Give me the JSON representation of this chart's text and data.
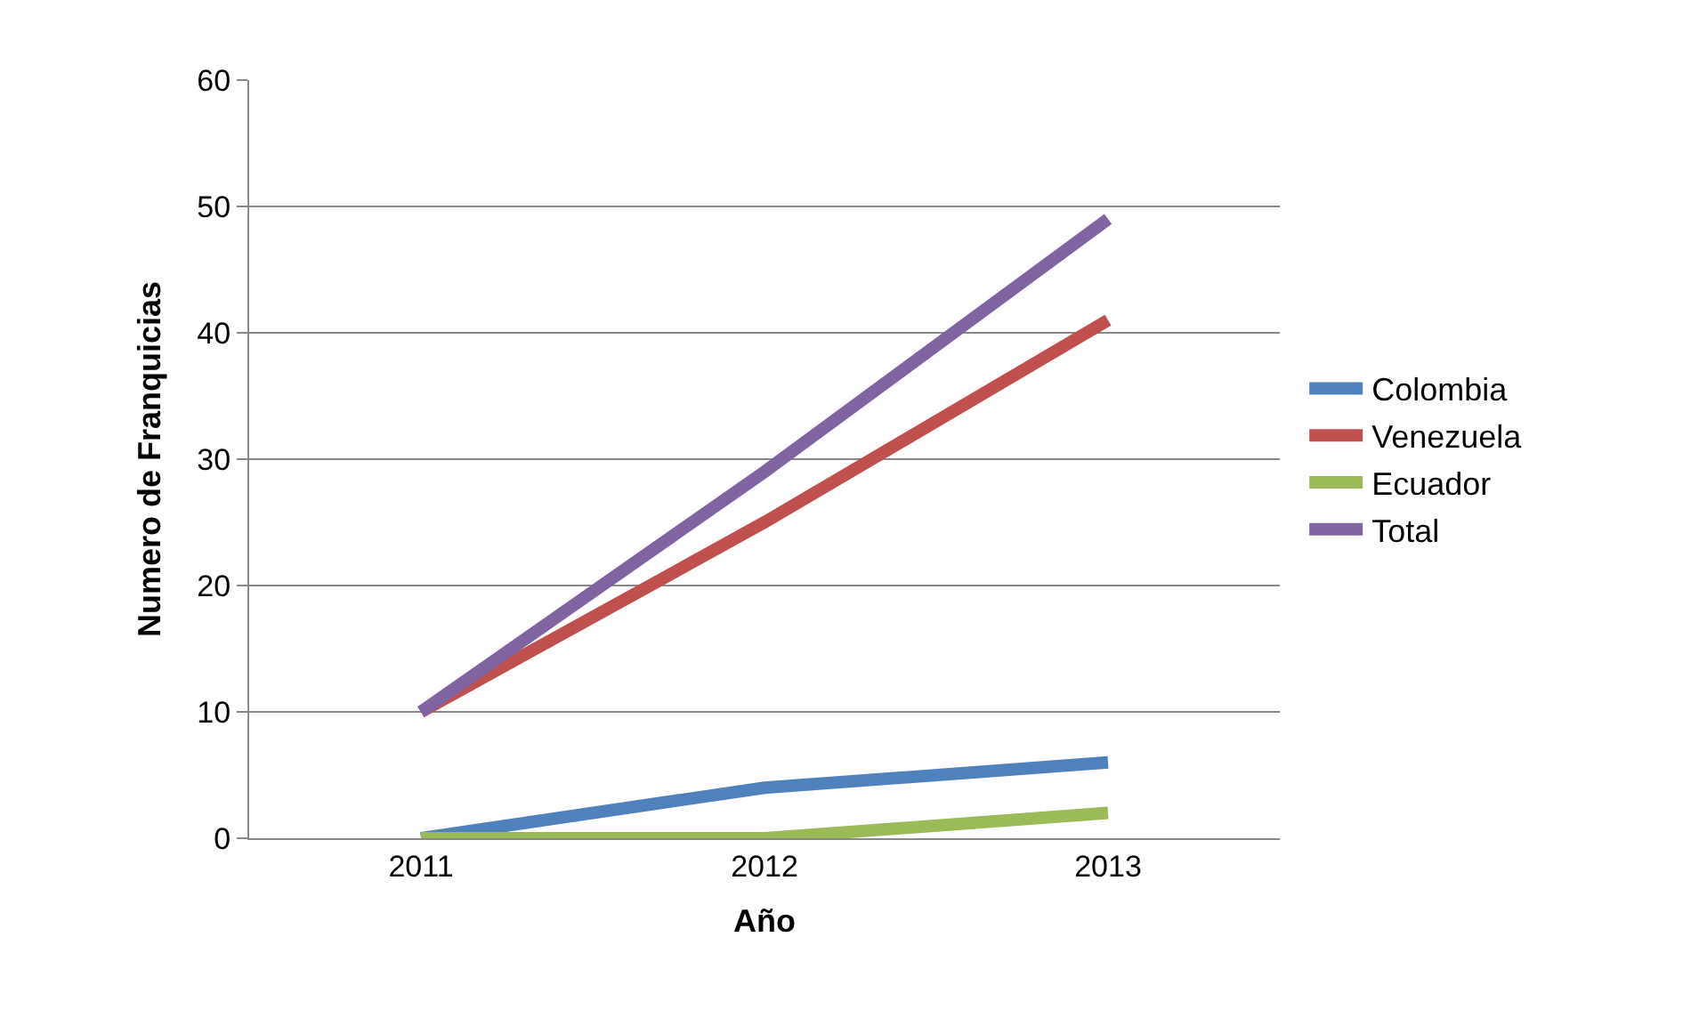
{
  "chart_data": {
    "type": "line",
    "xlabel": "Año",
    "ylabel": "Numero de Franquicias",
    "categories": [
      "2011",
      "2012",
      "2013"
    ],
    "series": [
      {
        "name": "Colombia",
        "color": "#4f81bd",
        "values": [
          0,
          4,
          6
        ]
      },
      {
        "name": "Venezuela",
        "color": "#c0504d",
        "values": [
          10,
          25,
          41
        ]
      },
      {
        "name": "Ecuador",
        "color": "#9bbb59",
        "values": [
          0,
          0,
          2
        ]
      },
      {
        "name": "Total",
        "color": "#8064a2",
        "values": [
          10,
          29,
          49
        ]
      }
    ],
    "ylim": [
      0,
      60
    ],
    "yticks": [
      0,
      10,
      20,
      30,
      40,
      50,
      60
    ],
    "grid": "y",
    "legend": "right",
    "marker": "none",
    "line_style": "solid"
  }
}
